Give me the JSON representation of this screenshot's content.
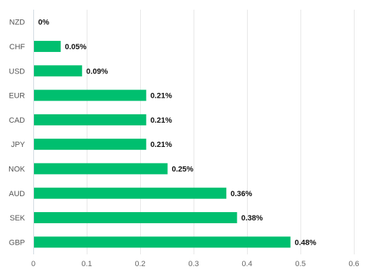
{
  "chart_data": {
    "type": "bar",
    "orientation": "horizontal",
    "categories": [
      "NZD",
      "CHF",
      "USD",
      "EUR",
      "CAD",
      "JPY",
      "NOK",
      "AUD",
      "SEK",
      "GBP"
    ],
    "values": [
      0,
      0.05,
      0.09,
      0.21,
      0.21,
      0.21,
      0.25,
      0.36,
      0.38,
      0.48
    ],
    "data_labels": [
      "0%",
      "0.05%",
      "0.09%",
      "0.21%",
      "0.21%",
      "0.21%",
      "0.25%",
      "0.36%",
      "0.38%",
      "0.48%"
    ],
    "x_ticks": [
      "0",
      "0.1",
      "0.2",
      "0.3",
      "0.4",
      "0.5",
      "0.6"
    ],
    "xlim": [
      0,
      0.6
    ],
    "title": "",
    "xlabel": "",
    "ylabel": "",
    "grid": "vertical",
    "legend": "none",
    "colors": {
      "bar": "#00bf6f",
      "grid": "#e6e6e6"
    }
  }
}
